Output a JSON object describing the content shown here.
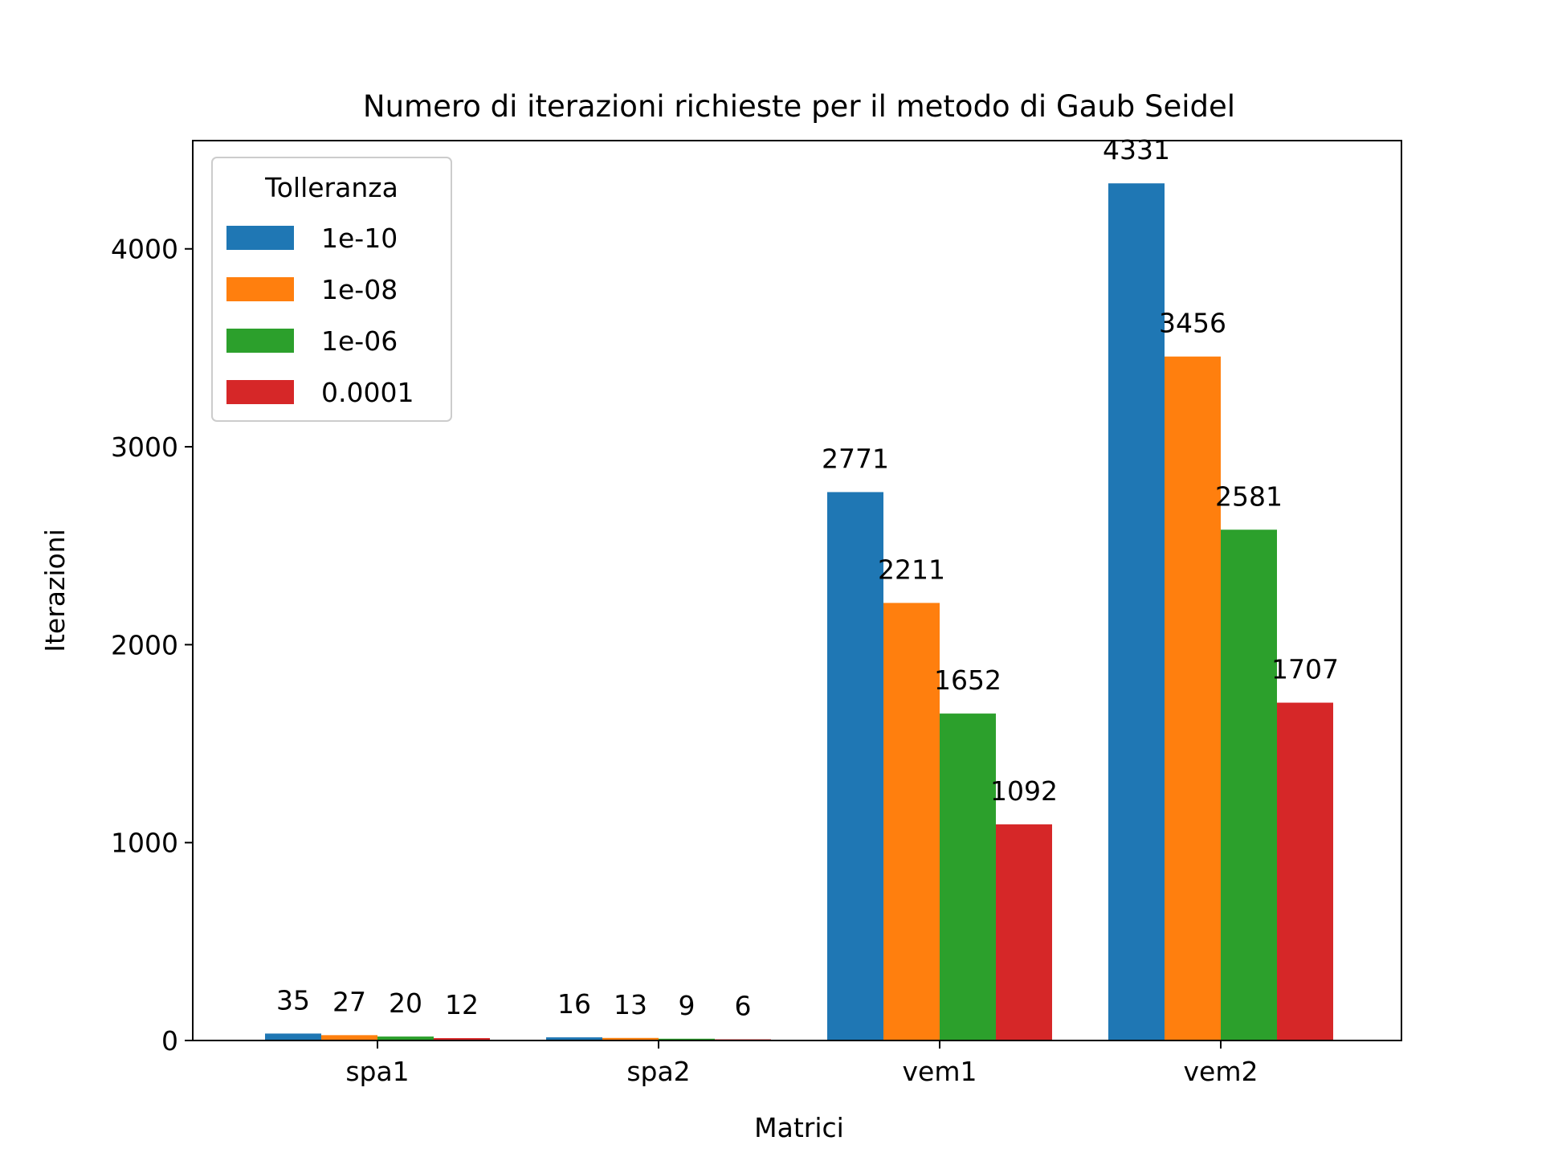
{
  "chart_data": {
    "type": "bar",
    "title": "Numero di iterazioni richieste per il metodo di Gaub Seidel",
    "xlabel": "Matrici",
    "ylabel": "Iterazioni",
    "categories": [
      "spa1",
      "spa2",
      "vem1",
      "vem2"
    ],
    "ylim": [
      0,
      4547
    ],
    "yticks": [
      0,
      1000,
      2000,
      3000,
      4000
    ],
    "grid": false,
    "legend": {
      "title": "Tolleranza",
      "placement": "top-left"
    },
    "series": [
      {
        "name": "1e-10",
        "color": "#1f77b4",
        "values": [
          35,
          16,
          2771,
          4331
        ]
      },
      {
        "name": "1e-08",
        "color": "#ff7f0e",
        "values": [
          27,
          13,
          2211,
          3456
        ]
      },
      {
        "name": "1e-06",
        "color": "#2ca02c",
        "values": [
          20,
          9,
          1652,
          2581
        ]
      },
      {
        "name": "0.0001",
        "color": "#d62728",
        "values": [
          12,
          6,
          1092,
          1707
        ]
      }
    ]
  }
}
